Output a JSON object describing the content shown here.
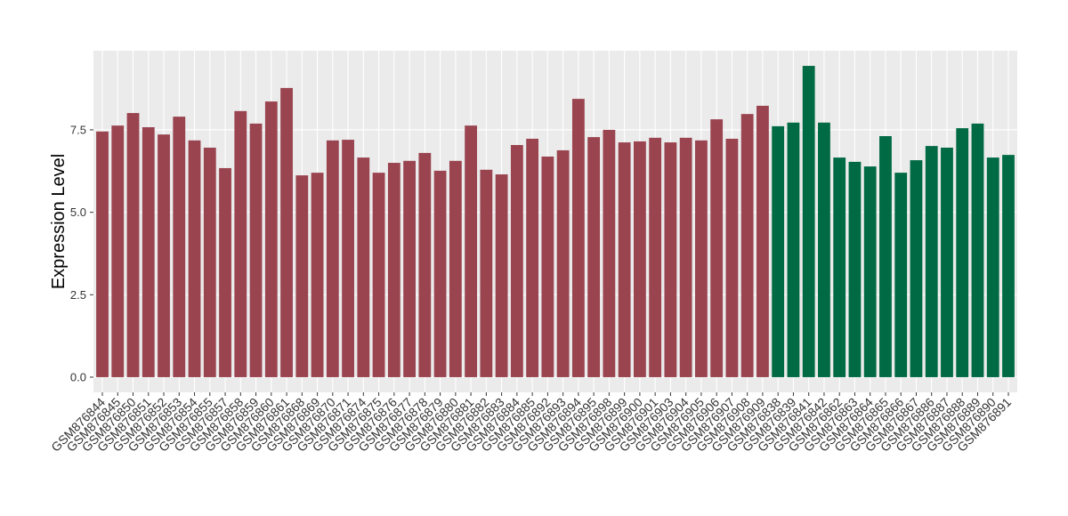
{
  "chart_data": {
    "type": "bar",
    "y_label": "Expression Level",
    "categories": [
      "GSM876844",
      "GSM876845",
      "GSM876850",
      "GSM876851",
      "GSM876852",
      "GSM876853",
      "GSM876854",
      "GSM876855",
      "GSM876857",
      "GSM876858",
      "GSM876859",
      "GSM876860",
      "GSM876861",
      "GSM876868",
      "GSM876869",
      "GSM876870",
      "GSM876871",
      "GSM876874",
      "GSM876875",
      "GSM876876",
      "GSM876877",
      "GSM876878",
      "GSM876879",
      "GSM876880",
      "GSM876881",
      "GSM876882",
      "GSM876883",
      "GSM876884",
      "GSM876885",
      "GSM876892",
      "GSM876893",
      "GSM876894",
      "GSM876895",
      "GSM876898",
      "GSM876899",
      "GSM876900",
      "GSM876901",
      "GSM876903",
      "GSM876904",
      "GSM876905",
      "GSM876906",
      "GSM876907",
      "GSM876908",
      "GSM876909",
      "GSM876838",
      "GSM876839",
      "GSM876841",
      "GSM876842",
      "GSM876862",
      "GSM876863",
      "GSM876864",
      "GSM876865",
      "GSM876866",
      "GSM876867",
      "GSM876886",
      "GSM876887",
      "GSM876888",
      "GSM876889",
      "GSM876890",
      "GSM876891"
    ],
    "values": [
      7.45,
      7.63,
      8.01,
      7.58,
      7.36,
      7.9,
      7.18,
      6.96,
      6.34,
      8.07,
      7.69,
      8.36,
      8.77,
      6.12,
      6.2,
      7.18,
      7.2,
      6.66,
      6.2,
      6.5,
      6.56,
      6.8,
      6.26,
      6.56,
      7.63,
      6.29,
      6.15,
      7.04,
      7.23,
      6.69,
      6.88,
      8.44,
      7.28,
      7.5,
      7.12,
      7.15,
      7.26,
      7.12,
      7.26,
      7.18,
      7.82,
      7.23,
      7.98,
      8.23,
      7.61,
      7.72,
      9.44,
      7.72,
      6.66,
      6.53,
      6.39,
      7.31,
      6.2,
      6.58,
      7.01,
      6.96,
      7.55,
      7.69,
      6.66,
      6.74
    ],
    "colors": [
      "#9a4450",
      "#9a4450",
      "#9a4450",
      "#9a4450",
      "#9a4450",
      "#9a4450",
      "#9a4450",
      "#9a4450",
      "#9a4450",
      "#9a4450",
      "#9a4450",
      "#9a4450",
      "#9a4450",
      "#9a4450",
      "#9a4450",
      "#9a4450",
      "#9a4450",
      "#9a4450",
      "#9a4450",
      "#9a4450",
      "#9a4450",
      "#9a4450",
      "#9a4450",
      "#9a4450",
      "#9a4450",
      "#9a4450",
      "#9a4450",
      "#9a4450",
      "#9a4450",
      "#9a4450",
      "#9a4450",
      "#9a4450",
      "#9a4450",
      "#9a4450",
      "#9a4450",
      "#9a4450",
      "#9a4450",
      "#9a4450",
      "#9a4450",
      "#9a4450",
      "#9a4450",
      "#9a4450",
      "#9a4450",
      "#9a4450",
      "#006a45",
      "#006a45",
      "#006a45",
      "#006a45",
      "#006a45",
      "#006a45",
      "#006a45",
      "#006a45",
      "#006a45",
      "#006a45",
      "#006a45",
      "#006a45",
      "#006a45",
      "#006a45",
      "#006a45",
      "#006a45"
    ],
    "ylim": [
      -0.46,
      9.9
    ],
    "yticks": [
      {
        "value": 0,
        "label": "0.0"
      },
      2.5,
      {
        "value": 5,
        "label": "5.0"
      },
      7.5
    ],
    "grid": true
  }
}
